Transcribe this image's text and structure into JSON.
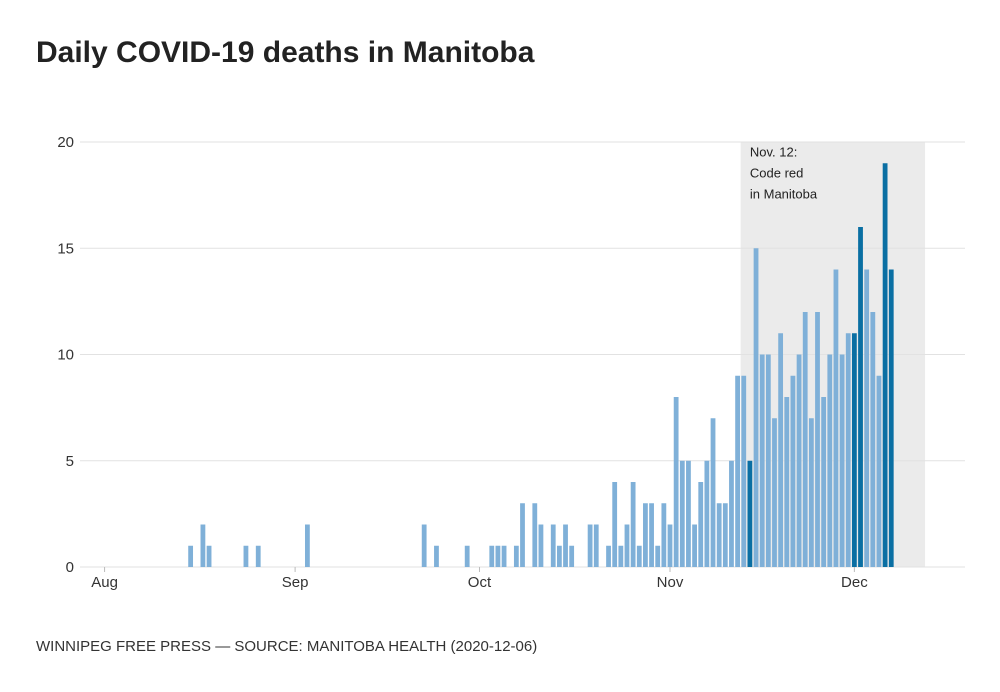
{
  "chart_data": {
    "type": "bar",
    "title": "Daily COVID-19 deaths in Manitoba",
    "source": "WINNIPEG FREE PRESS — SOURCE: MANITOBA HEALTH (2020-12-06)",
    "x_start_day": 0,
    "x_unit": "days since Aug 1, 2020",
    "xlim": [
      -4,
      140
    ],
    "ylim": [
      0,
      20
    ],
    "y_ticks": [
      0,
      5,
      10,
      15,
      20
    ],
    "x_ticks": [
      {
        "label": "Aug",
        "day": 0
      },
      {
        "label": "Sep",
        "day": 31
      },
      {
        "label": "Oct",
        "day": 61
      },
      {
        "label": "Nov",
        "day": 92
      },
      {
        "label": "Dec",
        "day": 122
      }
    ],
    "highlight_region": {
      "start_day": 103.5,
      "end_day": 133.5
    },
    "annotation": {
      "lines": [
        "Nov. 12:",
        "Code red",
        "in Manitoba"
      ],
      "day": 105,
      "y": 19.5
    },
    "colors": {
      "normal": "#7fb0d8",
      "highlight": "#0a6fa3",
      "shade": "#ebebeb",
      "grid": "#e2e2e2"
    },
    "series": [
      {
        "name": "Daily deaths",
        "values": [
          0,
          0,
          0,
          0,
          0,
          0,
          0,
          0,
          0,
          0,
          0,
          0,
          0,
          0,
          1,
          0,
          2,
          1,
          0,
          0,
          0,
          0,
          0,
          1,
          0,
          1,
          0,
          0,
          0,
          0,
          0,
          0,
          0,
          2,
          0,
          0,
          0,
          0,
          0,
          0,
          0,
          0,
          0,
          0,
          0,
          0,
          0,
          0,
          0,
          0,
          0,
          0,
          2,
          0,
          1,
          0,
          0,
          0,
          0,
          1,
          0,
          0,
          0,
          1,
          1,
          1,
          0,
          1,
          3,
          0,
          3,
          2,
          0,
          2,
          1,
          2,
          1,
          0,
          0,
          2,
          2,
          0,
          1,
          4,
          1,
          2,
          4,
          1,
          3,
          3,
          1,
          3,
          2,
          8,
          5,
          5,
          2,
          4,
          5,
          7,
          3,
          3,
          5,
          9,
          9,
          5,
          15,
          10,
          10,
          7,
          11,
          8,
          9,
          10,
          12,
          7,
          12,
          8,
          10,
          14,
          10,
          11,
          11,
          16,
          14,
          12,
          9,
          19,
          14
        ]
      }
    ],
    "highlight_days": [
      105,
      122,
      123,
      127,
      128
    ]
  }
}
